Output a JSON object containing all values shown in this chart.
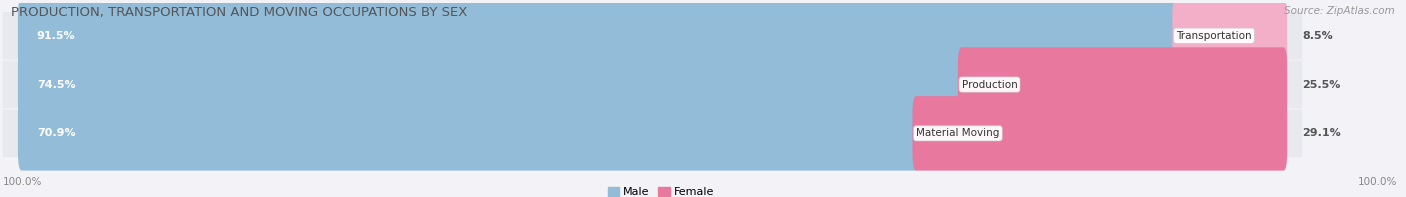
{
  "title": "PRODUCTION, TRANSPORTATION AND MOVING OCCUPATIONS BY SEX",
  "source": "Source: ZipAtlas.com",
  "categories": [
    "Transportation",
    "Production",
    "Material Moving"
  ],
  "male_pct": [
    91.5,
    74.5,
    70.9
  ],
  "female_pct": [
    8.5,
    25.5,
    29.1
  ],
  "male_color": "#92bcd8",
  "female_color": "#e8789e",
  "female_light_color": "#f4afc8",
  "row_bg_color": "#e8e8ef",
  "bg_color": "#f2f2f7",
  "label_male_color": "#ffffff",
  "label_female_color": "#555555",
  "axis_label_left": "100.0%",
  "axis_label_right": "100.0%",
  "legend_male": "Male",
  "legend_female": "Female",
  "title_fontsize": 9.5,
  "source_fontsize": 7.5,
  "bar_label_fontsize": 8,
  "cat_label_fontsize": 7.5,
  "axis_label_fontsize": 7.5,
  "legend_fontsize": 8,
  "figsize": [
    14.06,
    1.97
  ],
  "dpi": 100
}
